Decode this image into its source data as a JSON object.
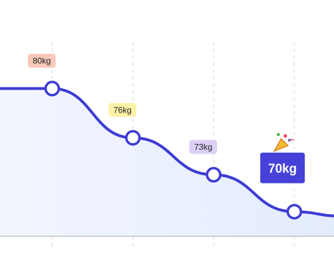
{
  "chart_data": {
    "type": "line",
    "categories": [
      null,
      null,
      null,
      null
    ],
    "values": [
      80,
      76,
      73,
      70
    ],
    "value_labels": [
      "80kg",
      "76kg",
      "73kg",
      "70kg"
    ],
    "color": "#3d3bd4",
    "label_colors": [
      "#f8c9b8",
      "#fbf2a8",
      "#ddd0f6",
      "#4541d9"
    ],
    "ylim": [
      68,
      82
    ]
  }
}
